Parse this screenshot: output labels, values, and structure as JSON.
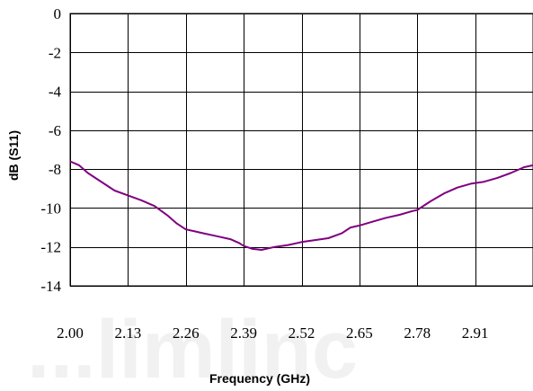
{
  "watermark": "...limlinc",
  "chart_data": {
    "type": "line",
    "title": "",
    "xlabel": "Frequency (GHz)",
    "ylabel": "dB (S11)",
    "xlim": [
      2.0,
      3.04
    ],
    "ylim": [
      -14,
      0
    ],
    "xticks": [
      2.0,
      2.13,
      2.26,
      2.39,
      2.52,
      2.65,
      2.78,
      2.91
    ],
    "xtick_labels": [
      "2.00",
      "2.13",
      "2.26",
      "2.39",
      "2.52",
      "2.65",
      "2.78",
      "2.91"
    ],
    "yticks": [
      0,
      -2,
      -4,
      -6,
      -8,
      -10,
      -12,
      -14
    ],
    "ytick_labels": [
      "0",
      "-2",
      "-4",
      "-6",
      "-8",
      "-10",
      "-12",
      "-14"
    ],
    "grid": true,
    "line_color": "#800080",
    "series": [
      {
        "x": [
          2.0,
          2.02,
          2.04,
          2.06,
          2.08,
          2.1,
          2.13,
          2.16,
          2.19,
          2.22,
          2.24,
          2.26,
          2.28,
          2.3,
          2.33,
          2.36,
          2.38,
          2.39,
          2.41,
          2.43,
          2.44,
          2.46,
          2.49,
          2.52,
          2.55,
          2.58,
          2.61,
          2.63,
          2.65,
          2.68,
          2.71,
          2.74,
          2.77,
          2.78,
          2.81,
          2.84,
          2.87,
          2.9,
          2.93,
          2.96,
          2.99,
          3.02,
          3.04
        ],
        "y": [
          -7.6,
          -7.8,
          -8.2,
          -8.5,
          -8.8,
          -9.1,
          -9.35,
          -9.6,
          -9.9,
          -10.4,
          -10.8,
          -11.1,
          -11.2,
          -11.3,
          -11.45,
          -11.6,
          -11.8,
          -11.95,
          -12.1,
          -12.15,
          -12.1,
          -12.0,
          -11.9,
          -11.75,
          -11.65,
          -11.55,
          -11.3,
          -11.0,
          -10.9,
          -10.7,
          -10.5,
          -10.35,
          -10.15,
          -10.1,
          -9.65,
          -9.25,
          -8.95,
          -8.75,
          -8.65,
          -8.45,
          -8.2,
          -7.9,
          -7.8
        ]
      }
    ]
  }
}
